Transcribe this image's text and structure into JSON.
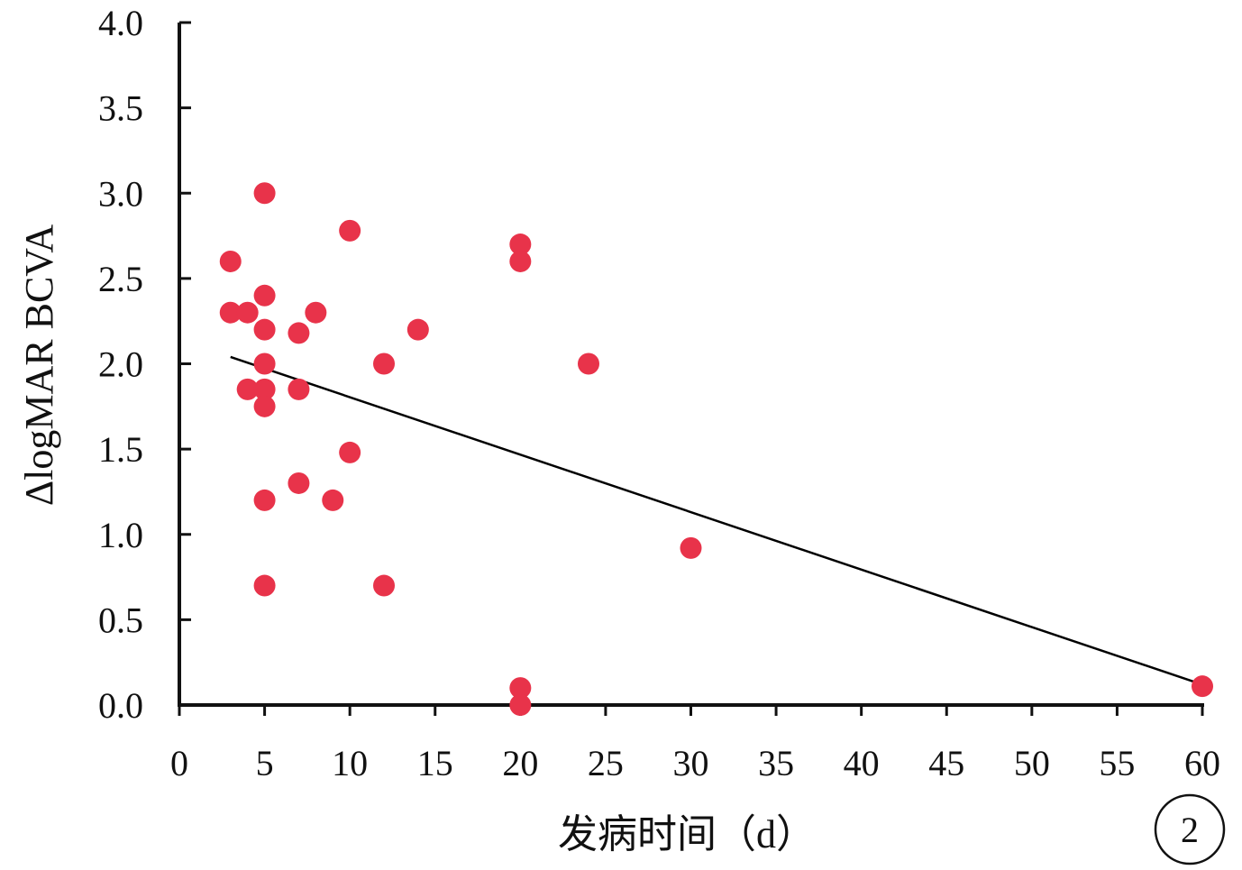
{
  "chart_data": {
    "type": "scatter",
    "title": "",
    "xlabel": "发病时间（d）",
    "ylabel": "ΔlogMAR BCVA",
    "xlim": [
      0,
      60
    ],
    "ylim": [
      0,
      4.0
    ],
    "x_ticks": [
      "0",
      "5",
      "10",
      "15",
      "20",
      "25",
      "30",
      "35",
      "40",
      "45",
      "50",
      "55",
      "60"
    ],
    "y_ticks": [
      "0.0",
      "0.5",
      "1.0",
      "1.5",
      "2.0",
      "2.5",
      "3.0",
      "3.5",
      "4.0"
    ],
    "x_tick_values": [
      0,
      5,
      10,
      15,
      20,
      25,
      30,
      35,
      40,
      45,
      50,
      55,
      60
    ],
    "y_tick_values": [
      0,
      0.5,
      1.0,
      1.5,
      2.0,
      2.5,
      3.0,
      3.5,
      4.0
    ],
    "grid": false,
    "point_color": "#e8334a",
    "line_color": "#000000",
    "points": [
      {
        "x": 3,
        "y": 2.6
      },
      {
        "x": 3,
        "y": 2.3
      },
      {
        "x": 4,
        "y": 2.3
      },
      {
        "x": 4,
        "y": 1.85
      },
      {
        "x": 5,
        "y": 3.0
      },
      {
        "x": 5,
        "y": 2.4
      },
      {
        "x": 5,
        "y": 2.2
      },
      {
        "x": 5,
        "y": 2.0
      },
      {
        "x": 5,
        "y": 1.85
      },
      {
        "x": 5,
        "y": 1.75
      },
      {
        "x": 5,
        "y": 1.2
      },
      {
        "x": 5,
        "y": 0.7
      },
      {
        "x": 7,
        "y": 2.18
      },
      {
        "x": 7,
        "y": 1.85
      },
      {
        "x": 7,
        "y": 1.3
      },
      {
        "x": 8,
        "y": 2.3
      },
      {
        "x": 9,
        "y": 1.2
      },
      {
        "x": 10,
        "y": 2.78
      },
      {
        "x": 10,
        "y": 1.48
      },
      {
        "x": 12,
        "y": 2.0
      },
      {
        "x": 12,
        "y": 0.7
      },
      {
        "x": 14,
        "y": 2.2
      },
      {
        "x": 20,
        "y": 2.7
      },
      {
        "x": 20,
        "y": 2.6
      },
      {
        "x": 20,
        "y": 0.1
      },
      {
        "x": 20,
        "y": 0.0
      },
      {
        "x": 24,
        "y": 2.0
      },
      {
        "x": 30,
        "y": 0.92
      },
      {
        "x": 60,
        "y": 0.11
      }
    ],
    "trendline": {
      "x": [
        3,
        60
      ],
      "y": [
        2.04,
        0.12
      ]
    }
  },
  "panel_label": "2"
}
